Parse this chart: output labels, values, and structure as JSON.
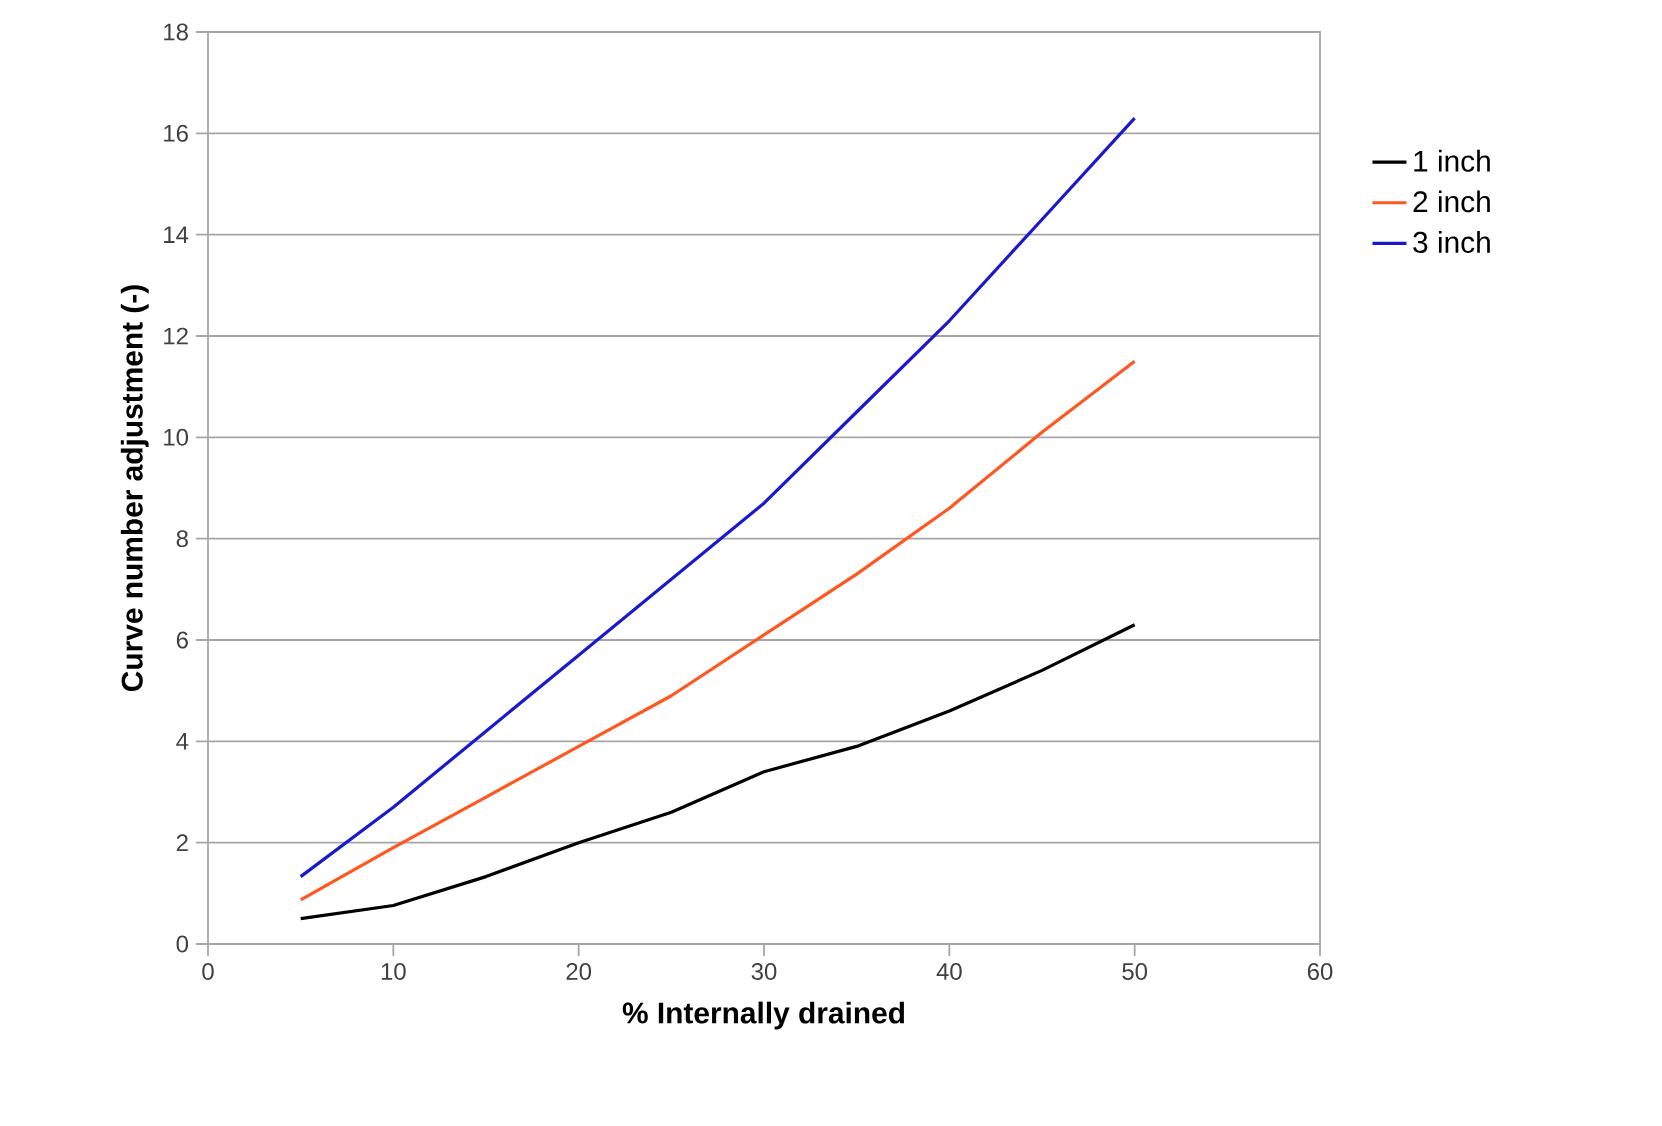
{
  "chart_data": {
    "type": "line",
    "xlabel": "% Internally drained",
    "ylabel": "Curve number adjustment (-)",
    "x": [
      5,
      10,
      15,
      20,
      25,
      30,
      35,
      40,
      45,
      50
    ],
    "series": [
      {
        "name": "1 inch",
        "color": "#000000",
        "values": [
          0.5,
          0.76,
          1.33,
          2.0,
          2.6,
          3.4,
          3.9,
          4.6,
          5.4,
          6.3
        ]
      },
      {
        "name": "2 inch",
        "color": "#ff5722",
        "values": [
          0.87,
          1.9,
          2.9,
          3.9,
          4.9,
          6.1,
          7.3,
          8.6,
          10.1,
          11.5
        ]
      },
      {
        "name": "3 inch",
        "color": "#1a1acc",
        "values": [
          1.33,
          2.7,
          4.2,
          5.7,
          7.2,
          8.7,
          10.5,
          12.3,
          14.3,
          16.3
        ]
      }
    ],
    "xlim": [
      0,
      60
    ],
    "xticks": [
      0,
      10,
      20,
      30,
      40,
      50,
      60
    ],
    "ylim": [
      0,
      18
    ],
    "yticks": [
      0,
      2,
      4,
      6,
      8,
      10,
      12,
      14,
      16,
      18
    ],
    "grid": "y",
    "legend": "right",
    "marker": "none",
    "line_style": "solid"
  }
}
